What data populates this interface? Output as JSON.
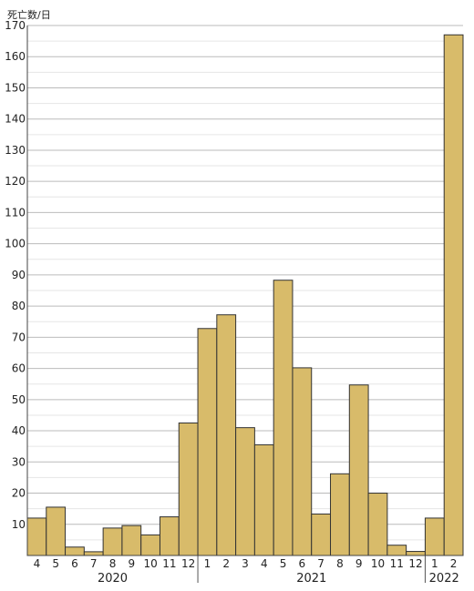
{
  "chart_data": {
    "type": "bar",
    "ylabel": "死亡数/日",
    "ylim": [
      0,
      170
    ],
    "yticks": [
      10,
      20,
      30,
      40,
      50,
      60,
      70,
      80,
      90,
      100,
      110,
      120,
      130,
      140,
      150,
      160,
      170
    ],
    "grid": true,
    "categories": [
      "4",
      "5",
      "6",
      "7",
      "8",
      "9",
      "10",
      "11",
      "12",
      "1",
      "2",
      "3",
      "4",
      "5",
      "6",
      "7",
      "8",
      "9",
      "10",
      "11",
      "12",
      "1",
      "2"
    ],
    "values": [
      12,
      15.5,
      2.7,
      1.2,
      8.8,
      9.6,
      6.6,
      12.4,
      42.5,
      72.8,
      77.2,
      41,
      35.5,
      88.3,
      60.2,
      13.3,
      26.2,
      54.7,
      20,
      3.3,
      1.3,
      12,
      167
    ],
    "year_groups": [
      {
        "label": "2020",
        "start": 0,
        "end": 8
      },
      {
        "label": "2021",
        "start": 9,
        "end": 20
      },
      {
        "label": "2022",
        "start": 21,
        "end": 22
      }
    ],
    "bar_color": "#d8bb6a",
    "bar_stroke": "#333333",
    "grid_color": "#bbbbbb"
  }
}
